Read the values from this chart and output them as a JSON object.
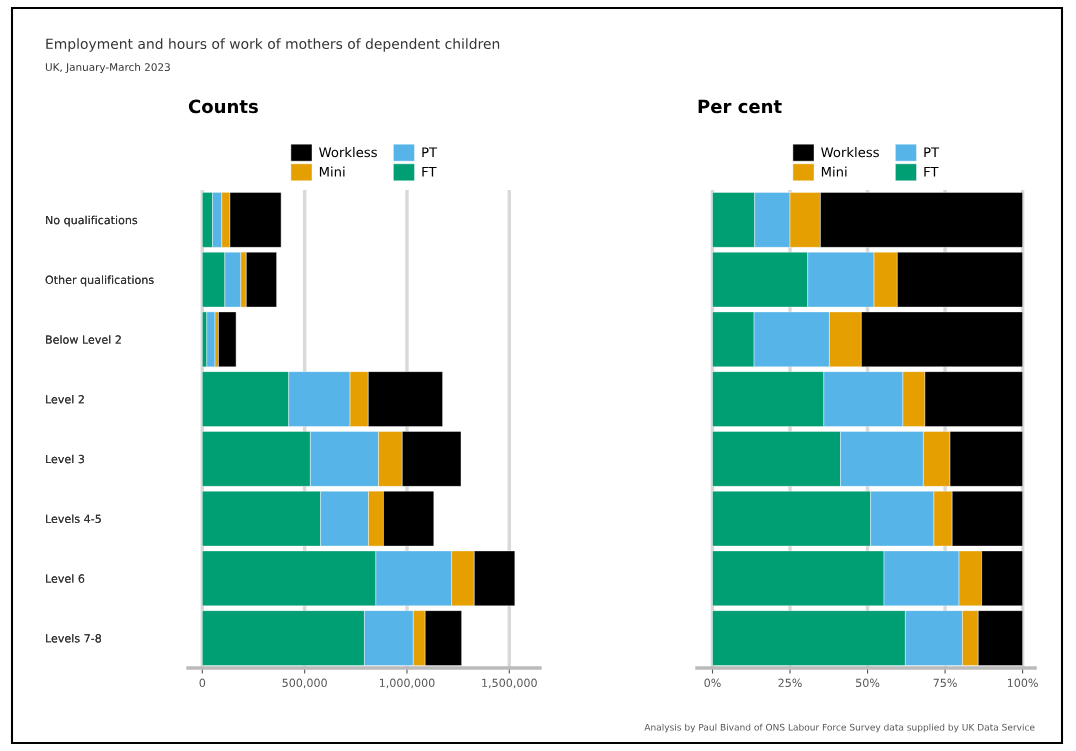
{
  "chart_data": [
    {
      "type": "bar",
      "title": "Counts",
      "orientation": "horizontal",
      "stacked": true,
      "grid": "x",
      "legend": "top",
      "categories": [
        "No qualifications",
        "Other qualifications",
        "Below Level 2",
        "Level 2",
        "Level 3",
        "Levels 4-5",
        "Level 6",
        "Levels 7-8"
      ],
      "xlim": [
        -70000,
        1650000
      ],
      "xticks": [
        {
          "value": 0,
          "label": "0"
        },
        {
          "value": 500000,
          "label": "500,000"
        },
        {
          "value": 1000000,
          "label": "1,000,000"
        },
        {
          "value": 1500000,
          "label": "1,500,000"
        }
      ],
      "series": [
        {
          "name": "FT",
          "color": "#009e73",
          "values": [
            50000,
            110000,
            22000,
            422000,
            528000,
            578000,
            848000,
            792000
          ]
        },
        {
          "name": "PT",
          "color": "#56b4e9",
          "values": [
            45000,
            78000,
            40000,
            300000,
            333000,
            234000,
            370000,
            239000
          ]
        },
        {
          "name": "Mini",
          "color": "#e69f00",
          "values": [
            40000,
            27000,
            17000,
            89000,
            116000,
            73000,
            111000,
            58000
          ]
        },
        {
          "name": "Workless",
          "color": "#000000",
          "values": [
            250000,
            148000,
            86000,
            363000,
            287000,
            246000,
            198000,
            178000
          ]
        }
      ]
    },
    {
      "type": "bar",
      "title": "Per cent",
      "orientation": "horizontal",
      "stacked": true,
      "grid": "x",
      "legend": "top",
      "categories": [
        "No qualifications",
        "Other qualifications",
        "Below Level 2",
        "Level 2",
        "Level 3",
        "Levels 4-5",
        "Level 6",
        "Levels 7-8"
      ],
      "xlim": [
        -5,
        104
      ],
      "xticks": [
        {
          "value": 0,
          "label": "0%"
        },
        {
          "value": 25,
          "label": "25%"
        },
        {
          "value": 50,
          "label": "50%"
        },
        {
          "value": 75,
          "label": "75%"
        },
        {
          "value": 100,
          "label": "100%"
        }
      ],
      "series": [
        {
          "name": "FT",
          "color": "#009e73",
          "values": [
            13.6,
            30.7,
            13.4,
            35.9,
            41.3,
            51.0,
            55.3,
            62.2
          ]
        },
        {
          "name": "PT",
          "color": "#56b4e9",
          "values": [
            11.4,
            21.4,
            24.3,
            25.5,
            26.7,
            20.4,
            24.2,
            18.4
          ]
        },
        {
          "name": "Mini",
          "color": "#e69f00",
          "values": [
            9.8,
            7.5,
            10.3,
            7.1,
            8.6,
            5.9,
            7.3,
            5.1
          ]
        },
        {
          "name": "Workless",
          "color": "#000000",
          "values": [
            65.2,
            40.4,
            52.0,
            31.5,
            23.4,
            22.7,
            13.2,
            14.3
          ]
        }
      ],
      "annotations": [
        "Employment and hours of work of mothers of dependent children",
        "UK, January-March 2023",
        "Analysis by Paul Bivand of ONS Labour Force Survey data supplied by UK Data Service"
      ]
    }
  ]
}
